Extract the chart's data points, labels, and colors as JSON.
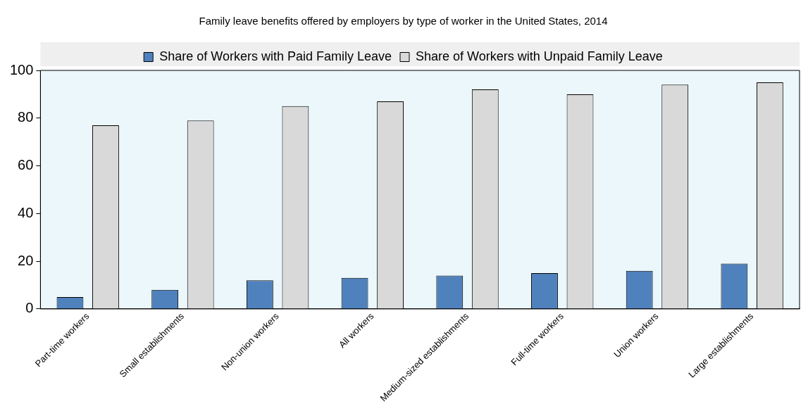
{
  "chart_data": {
    "type": "bar",
    "title": "Family leave benefits offered by employers by type of worker in the United States, 2014",
    "categories": [
      "Part-time workers",
      "Small establishments",
      "Non-union workers",
      "All workers",
      "Medium-sized establishments",
      "Full-time workers",
      "Union workers",
      "Large establishments"
    ],
    "series": [
      {
        "name": "Share of Workers with Paid Family Leave",
        "color": "#4f81bd",
        "values": [
          5,
          8,
          12,
          13,
          14,
          15,
          16,
          19
        ]
      },
      {
        "name": "Share of Workers with Unpaid Family Leave",
        "color": "#d9d9d9",
        "values": [
          77,
          79,
          85,
          87,
          92,
          90,
          94,
          95
        ]
      }
    ],
    "ylim": [
      0,
      100
    ],
    "yticks": [
      0,
      20,
      40,
      60,
      80,
      100
    ],
    "grid": false,
    "legend": "top"
  }
}
